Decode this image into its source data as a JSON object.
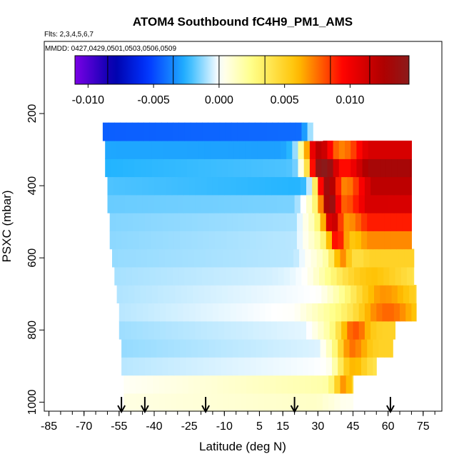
{
  "chart_data": {
    "type": "heatmap",
    "title": "ATOM4 Southbound fC4H9_PM1_AMS",
    "annotations": [
      "Flts: 2,3,4,5,6,7",
      "MMDD: 0427,0429,0501,0503,0506,0509"
    ],
    "xlabel": "Latitude (deg N)",
    "ylabel": "PSXC (mbar)",
    "xlim": [
      -87,
      83
    ],
    "ylim": [
      1025,
      0
    ],
    "y_reversed": true,
    "xticks": [
      -85,
      -70,
      -55,
      -40,
      -25,
      -10,
      5,
      15,
      30,
      45,
      60,
      75
    ],
    "xtick_labels": [
      "-85",
      "-70",
      "-55",
      "-40",
      "-25",
      "-10",
      "5",
      "15",
      "30",
      "45",
      "60",
      "75"
    ],
    "x_minor_step": 5,
    "yticks": [
      200,
      400,
      600,
      800,
      1000
    ],
    "ytick_labels": [
      "200",
      "400",
      "600",
      "800",
      "1000"
    ],
    "colorbar": {
      "min": -0.011,
      "max": 0.0145,
      "ticks": [
        -0.01,
        -0.005,
        0.0,
        0.005,
        0.01
      ],
      "tick_labels": [
        "-0.010",
        "-0.005",
        "0.000",
        "0.005",
        "0.010"
      ],
      "boundaries": [
        -0.0085,
        -0.0035,
        0.0,
        0.0035,
        0.0085,
        0.0115
      ],
      "colors": [
        "#7a00e6",
        "#0000aa",
        "#0033ff",
        "#22b4ff",
        "#ffffff",
        "#ffff88",
        "#ffc000",
        "#ff0000",
        "#b00000",
        "#8b1a1a"
      ],
      "color_stops": [
        -0.011,
        -0.008,
        -0.0055,
        -0.0025,
        0.0,
        0.0025,
        0.006,
        0.0095,
        0.0125,
        0.0145
      ]
    },
    "flight_latitudes": [
      -54,
      -44,
      -18,
      20,
      61
    ],
    "rows": [
      {
        "p": 1000,
        "x0": -53,
        "x1": 45,
        "a": 0.0006,
        "b": 0.0012,
        "c": 30,
        "d": 0.0003,
        "h": 36,
        "w": 5
      },
      {
        "p": 950,
        "x0": -53,
        "x1": 45,
        "a": 0.0002,
        "b": 0.0018,
        "c": 34,
        "d": 0.004,
        "h": 41,
        "w": 4
      },
      {
        "p": 900,
        "x0": -54,
        "x1": 55,
        "a": -0.0008,
        "b": 0.0,
        "c": 35,
        "d": 0.004,
        "h": 44,
        "w": 6
      },
      {
        "p": 850,
        "x0": -54,
        "x1": 62,
        "a": -0.0012,
        "b": -0.0004,
        "c": 30,
        "d": 0.005,
        "h": 44,
        "w": 6
      },
      {
        "p": 800,
        "x0": -55,
        "x1": 63,
        "a": -0.0011,
        "b": -0.0003,
        "c": 25,
        "d": 0.005,
        "h": 45,
        "w": 6
      },
      {
        "p": 750,
        "x0": -55,
        "x1": 72,
        "a": -0.0008,
        "b": 0.0001,
        "c": 20,
        "d": 0.0045,
        "h": 60,
        "w": 12
      },
      {
        "p": 700,
        "x0": -56,
        "x1": 72,
        "a": -0.0009,
        "b": 0.0,
        "c": 30,
        "d": 0.004,
        "h": 58,
        "w": 14
      },
      {
        "p": 650,
        "x0": -57,
        "x1": 71,
        "a": -0.001,
        "b": -0.0004,
        "c": 25,
        "d": 0.0035,
        "h": 50,
        "w": 18
      },
      {
        "p": 600,
        "x0": -58,
        "x1": 71,
        "a": -0.0012,
        "b": -0.0008,
        "c": 20,
        "d": 0.005,
        "h": 40,
        "w": 4
      },
      {
        "p": 550,
        "x0": -59,
        "x1": 70,
        "a": -0.0013,
        "b": -0.0008,
        "c": 20,
        "d": 0.007,
        "h": 38,
        "w": 4
      },
      {
        "p": 500,
        "x0": -59,
        "x1": 70,
        "a": -0.0014,
        "b": -0.001,
        "c": 20,
        "d": 0.009,
        "h": 36,
        "w": 4
      },
      {
        "p": 450,
        "x0": -60,
        "x1": 70,
        "a": -0.0017,
        "b": -0.0015,
        "c": 20,
        "d": 0.011,
        "h": 35,
        "w": 4
      },
      {
        "p": 400,
        "x0": -60,
        "x1": 70,
        "a": -0.002,
        "b": -0.0025,
        "c": 25,
        "d": 0.012,
        "h": 34,
        "w": 5
      },
      {
        "p": 350,
        "x0": -61,
        "x1": 70,
        "a": -0.0025,
        "b": -0.002,
        "c": 20,
        "d": 0.013,
        "h": 32,
        "w": 6
      },
      {
        "p": 300,
        "x0": -61,
        "x1": 70,
        "a": -0.0028,
        "b": -0.003,
        "c": 20,
        "d": 0.011,
        "h": 30,
        "w": 7
      },
      {
        "p": 250,
        "x0": -62,
        "x1": 32,
        "a": -0.0045,
        "b": -0.0042,
        "c": 23,
        "d": 0.0,
        "h": 28,
        "w": 3
      }
    ]
  }
}
